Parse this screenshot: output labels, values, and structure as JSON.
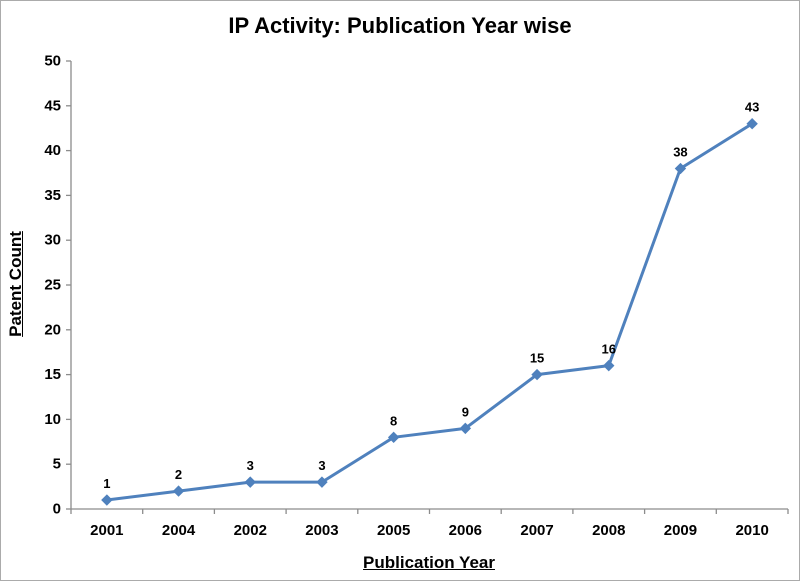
{
  "chart_data": {
    "type": "line",
    "title": "IP Activity: Publication Year wise",
    "xlabel": "Publication Year",
    "ylabel": "Patent Count",
    "categories": [
      "2001",
      "2004",
      "2002",
      "2003",
      "2005",
      "2006",
      "2007",
      "2008",
      "2009",
      "2010"
    ],
    "values": [
      1,
      2,
      3,
      3,
      8,
      9,
      15,
      16,
      38,
      43
    ],
    "data_labels": [
      "1",
      "2",
      "3",
      "3",
      "8",
      "9",
      "15",
      "16",
      "38",
      "43"
    ],
    "ylim": [
      0,
      50
    ],
    "yticks": [
      0,
      5,
      10,
      15,
      20,
      25,
      30,
      35,
      40,
      45,
      50
    ],
    "grid": false,
    "legend": "none",
    "marker": "diamond",
    "colors": {
      "line": "#4f81bd",
      "marker": "#4f81bd",
      "axis": "#8c8c8c",
      "text": "#000000",
      "frame_border": "#ababab",
      "background": "#ffffff"
    }
  }
}
